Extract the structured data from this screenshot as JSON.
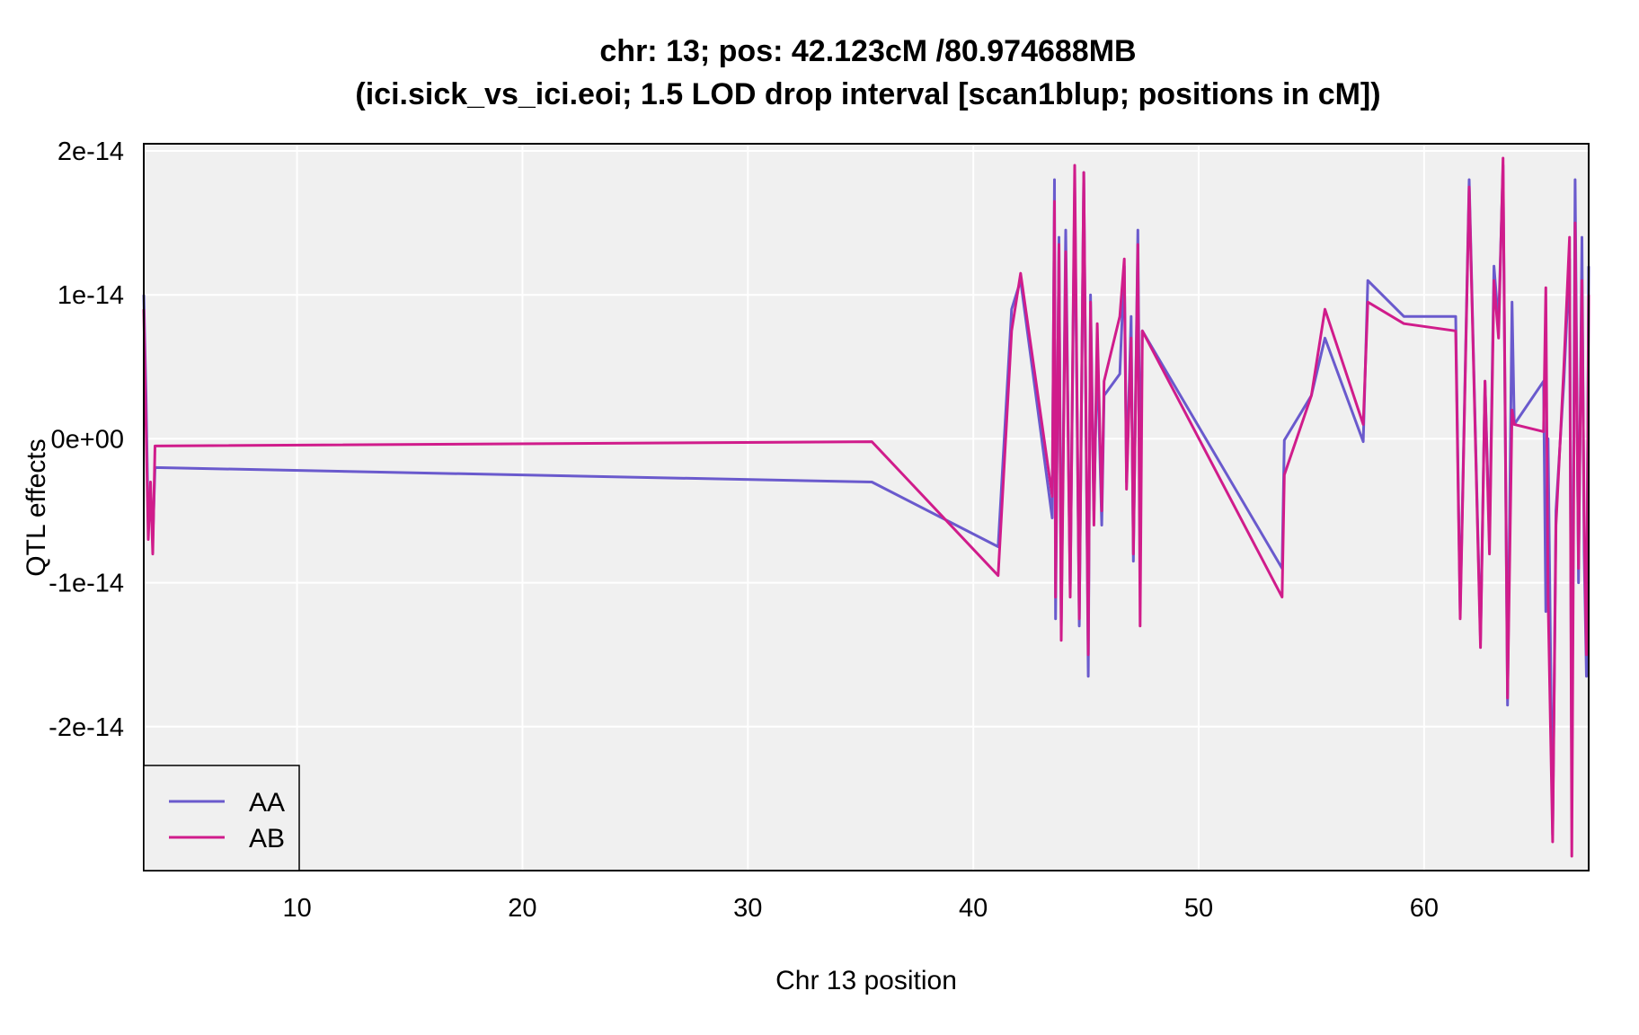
{
  "chart_data": {
    "type": "line",
    "title": "chr: 13; pos: 42.123cM /80.974688MB",
    "subtitle": "(ici.sick_vs_ici.eoi; 1.5 LOD drop interval [scan1blup; positions in cM])",
    "xlabel": "Chr 13 position",
    "ylabel": "QTL effects",
    "xlim": [
      3.2,
      67.3
    ],
    "ylim": [
      -3e-14,
      2e-14
    ],
    "x_ticks": [
      10,
      20,
      30,
      40,
      50,
      60
    ],
    "x_tick_labels": [
      "10",
      "20",
      "30",
      "40",
      "50",
      "60"
    ],
    "y_ticks": [
      2e-14,
      1e-14,
      0,
      -1e-14,
      -2e-14
    ],
    "y_tick_labels": [
      "2e-14",
      "1e-14",
      "0e+00",
      "-1e-14",
      "-2e-14"
    ],
    "grid": true,
    "legend_position": "bottom-left",
    "background_color": "#f0f0f0",
    "series": [
      {
        "name": "AA",
        "color": "#6a5acd",
        "points": [
          [
            3.2,
            1e-14
          ],
          [
            3.3,
            3e-15
          ],
          [
            3.4,
            -6e-15
          ],
          [
            3.5,
            -4e-15
          ],
          [
            3.6,
            -7e-15
          ],
          [
            3.7,
            -2e-15
          ],
          [
            35.5,
            -3e-15
          ],
          [
            41.1,
            -7.5e-15
          ],
          [
            41.7,
            9e-15
          ],
          [
            42.1,
            1.1e-14
          ],
          [
            43.5,
            -5.5e-15
          ],
          [
            43.6,
            1.8e-14
          ],
          [
            43.65,
            -1.25e-14
          ],
          [
            43.8,
            1.4e-14
          ],
          [
            43.9,
            -1.3e-14
          ],
          [
            44.1,
            1.45e-14
          ],
          [
            44.3,
            -1.05e-14
          ],
          [
            44.5,
            1.75e-14
          ],
          [
            44.7,
            -1.3e-14
          ],
          [
            44.9,
            1.85e-14
          ],
          [
            45.1,
            -1.65e-14
          ],
          [
            45.2,
            1e-14
          ],
          [
            45.35,
            -5e-15
          ],
          [
            45.5,
            6e-15
          ],
          [
            45.7,
            -6e-15
          ],
          [
            45.8,
            3e-15
          ],
          [
            46.5,
            4.5e-15
          ],
          [
            46.7,
            1.2e-14
          ],
          [
            46.8,
            -3e-15
          ],
          [
            47.0,
            8.5e-15
          ],
          [
            47.1,
            -8.5e-15
          ],
          [
            47.3,
            1.45e-14
          ],
          [
            47.4,
            -4e-15
          ],
          [
            47.5,
            7.5e-15
          ],
          [
            53.7,
            -9e-15
          ],
          [
            53.8,
            -1e-16
          ],
          [
            55.0,
            3e-15
          ],
          [
            55.6,
            7e-15
          ],
          [
            57.3,
            -2e-16
          ],
          [
            57.5,
            1.1e-14
          ],
          [
            59.1,
            8.5e-15
          ],
          [
            61.4,
            8.5e-15
          ],
          [
            61.6,
            -1.2e-14
          ],
          [
            62.0,
            1.8e-14
          ],
          [
            62.5,
            -1.4e-14
          ],
          [
            62.7,
            4e-15
          ],
          [
            62.9,
            -7e-15
          ],
          [
            63.1,
            1.2e-14
          ],
          [
            63.3,
            8e-15
          ],
          [
            63.5,
            1.9e-14
          ],
          [
            63.7,
            -1.85e-14
          ],
          [
            63.9,
            9.5e-15
          ],
          [
            64.0,
            1e-15
          ],
          [
            65.3,
            4e-15
          ],
          [
            65.4,
            -1.2e-14
          ],
          [
            65.5,
            0.0
          ],
          [
            65.7,
            -2.75e-14
          ],
          [
            65.85,
            -5e-15
          ],
          [
            66.2,
            4e-15
          ],
          [
            66.45,
            1.25e-14
          ],
          [
            66.55,
            -2.45e-14
          ],
          [
            66.7,
            1.8e-14
          ],
          [
            66.85,
            -1e-14
          ],
          [
            67.0,
            1.4e-14
          ],
          [
            67.1,
            -8e-15
          ],
          [
            67.2,
            -1.65e-14
          ],
          [
            67.3,
            1.2e-14
          ]
        ]
      },
      {
        "name": "AB",
        "color": "#d01c8b",
        "points": [
          [
            3.2,
            9e-15
          ],
          [
            3.3,
            1e-15
          ],
          [
            3.4,
            -7e-15
          ],
          [
            3.5,
            -3e-15
          ],
          [
            3.6,
            -8e-15
          ],
          [
            3.7,
            -5e-16
          ],
          [
            35.5,
            -2e-16
          ],
          [
            41.1,
            -9.5e-15
          ],
          [
            41.7,
            7.5e-15
          ],
          [
            42.1,
            1.15e-14
          ],
          [
            43.5,
            -4e-15
          ],
          [
            43.6,
            1.65e-14
          ],
          [
            43.65,
            -1.1e-14
          ],
          [
            43.8,
            1.35e-14
          ],
          [
            43.9,
            -1.4e-14
          ],
          [
            44.1,
            1.3e-14
          ],
          [
            44.3,
            -1.1e-14
          ],
          [
            44.5,
            1.9e-14
          ],
          [
            44.7,
            -1.25e-14
          ],
          [
            44.9,
            1.85e-14
          ],
          [
            45.1,
            -1.5e-14
          ],
          [
            45.2,
            9.5e-15
          ],
          [
            45.35,
            -6e-15
          ],
          [
            45.5,
            8e-15
          ],
          [
            45.7,
            -5e-15
          ],
          [
            45.8,
            4e-15
          ],
          [
            46.5,
            8.5e-15
          ],
          [
            46.7,
            1.25e-14
          ],
          [
            46.8,
            -3.5e-15
          ],
          [
            47.0,
            7e-15
          ],
          [
            47.1,
            -8e-15
          ],
          [
            47.3,
            1.35e-14
          ],
          [
            47.4,
            -1.3e-14
          ],
          [
            47.5,
            7.5e-15
          ],
          [
            53.7,
            -1.1e-14
          ],
          [
            53.8,
            -2.5e-15
          ],
          [
            55.0,
            3e-15
          ],
          [
            55.6,
            9e-15
          ],
          [
            57.3,
            1e-15
          ],
          [
            57.5,
            9.5e-15
          ],
          [
            59.1,
            8e-15
          ],
          [
            61.4,
            7.5e-15
          ],
          [
            61.6,
            -1.25e-14
          ],
          [
            62.0,
            1.75e-14
          ],
          [
            62.5,
            -1.45e-14
          ],
          [
            62.7,
            4e-15
          ],
          [
            62.9,
            -8e-15
          ],
          [
            63.1,
            1.1e-14
          ],
          [
            63.3,
            7e-15
          ],
          [
            63.5,
            1.95e-14
          ],
          [
            63.7,
            -1.8e-14
          ],
          [
            63.9,
            2e-15
          ],
          [
            64.0,
            1e-15
          ],
          [
            65.3,
            5e-16
          ],
          [
            65.4,
            1.05e-14
          ],
          [
            65.5,
            -1.1e-14
          ],
          [
            65.7,
            -2.8e-14
          ],
          [
            65.85,
            -6e-15
          ],
          [
            66.2,
            5e-15
          ],
          [
            66.45,
            1.4e-14
          ],
          [
            66.55,
            -2.9e-14
          ],
          [
            66.7,
            1.5e-14
          ],
          [
            66.85,
            -9e-15
          ],
          [
            67.0,
            1.1e-14
          ],
          [
            67.1,
            -6e-15
          ],
          [
            67.2,
            -1.5e-14
          ],
          [
            67.3,
            1e-14
          ]
        ]
      }
    ]
  }
}
